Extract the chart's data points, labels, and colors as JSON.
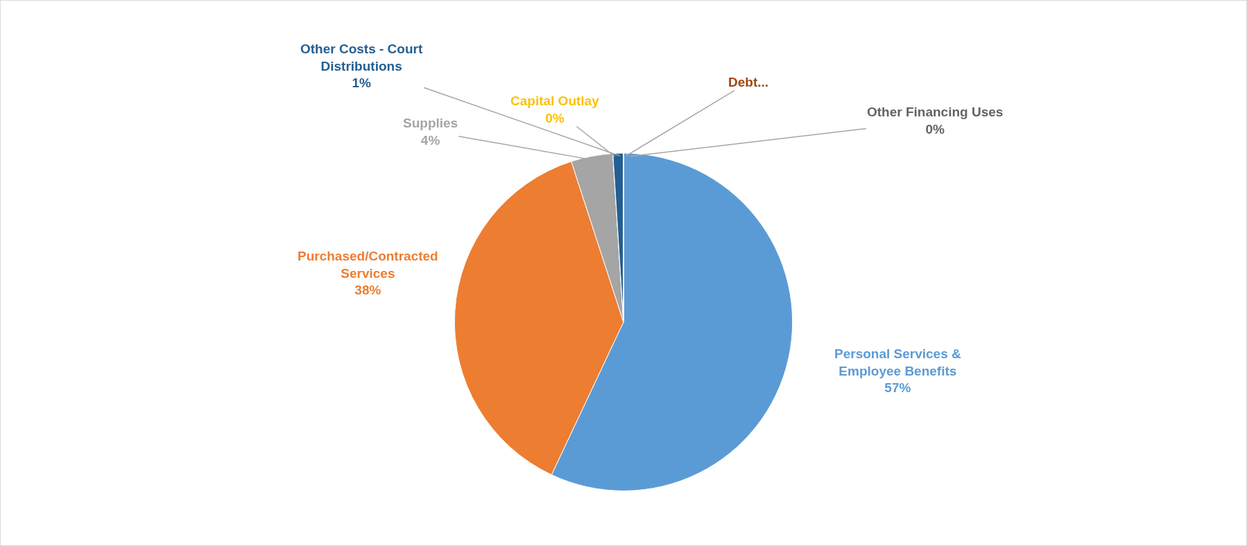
{
  "chart_data": {
    "type": "pie",
    "categories": [
      "Personal Services & Employee Benefits",
      "Purchased/Contracted Services",
      "Supplies",
      "Capital Outlay",
      "Other Costs - Court Distributions",
      "Debt...",
      "Other Financing Uses"
    ],
    "values": [
      57,
      38,
      4,
      0,
      1,
      0,
      0
    ],
    "colors": [
      "#5b9bd5",
      "#ed7d31",
      "#a5a5a5",
      "#ffc000",
      "#255e91",
      "#9e480e",
      "#636363"
    ],
    "value_labels": [
      "57%",
      "38%",
      "4%",
      "0%",
      "1%",
      null,
      "0%"
    ]
  }
}
